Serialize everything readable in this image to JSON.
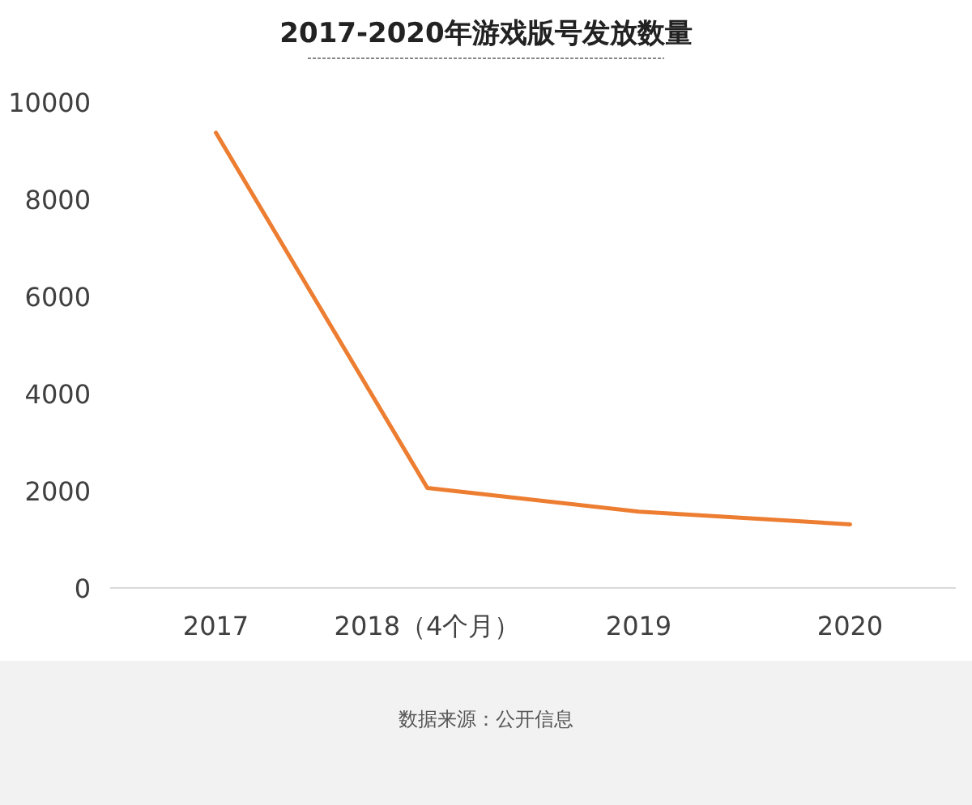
{
  "chart_data": {
    "type": "line",
    "title": "2017-2020年游戏版号发放数量",
    "categories": [
      "2017",
      "2018（4个月）",
      "2019",
      "2020"
    ],
    "values": [
      9370,
      2060,
      1570,
      1310
    ],
    "color": "#ed7d31",
    "ylim": [
      0,
      10000
    ],
    "yticks": [
      0,
      2000,
      4000,
      6000,
      8000,
      10000
    ],
    "annotations": [
      "数据来源：公开信息"
    ]
  }
}
